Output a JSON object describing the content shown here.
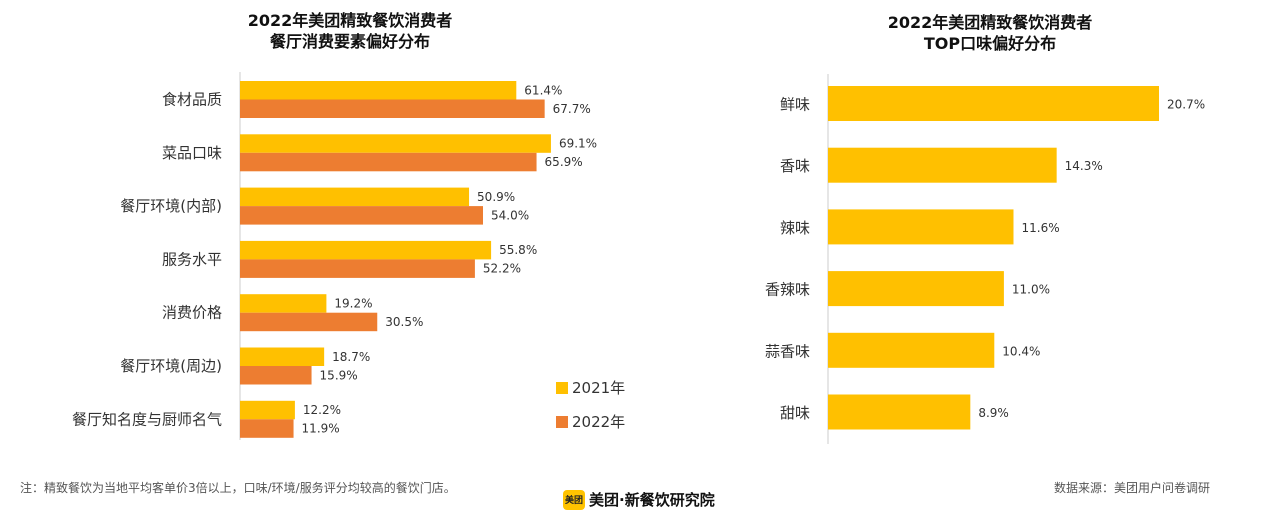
{
  "chart_data": [
    {
      "type": "bar",
      "orientation": "horizontal",
      "title": [
        "2022年美团精致餐饮消费者",
        "餐厅消费要素偏好分布"
      ],
      "categories": [
        "食材品质",
        "菜品口味",
        "餐厅环境(内部)",
        "服务水平",
        "消费价格",
        "餐厅环境(周边)",
        "餐厅知名度与厨师名气"
      ],
      "series": [
        {
          "name": "2021年",
          "color": "#FFC000",
          "values": [
            61.4,
            69.1,
            50.9,
            55.8,
            19.2,
            18.7,
            12.2
          ],
          "labels": [
            "61.4%",
            "69.1%",
            "50.9%",
            "55.8%",
            "19.2%",
            "18.7%",
            "12.2%"
          ]
        },
        {
          "name": "2022年",
          "color": "#ED7D31",
          "values": [
            67.7,
            65.9,
            54.0,
            52.2,
            30.5,
            15.9,
            11.9
          ],
          "labels": [
            "67.7%",
            "65.9%",
            "54.0%",
            "52.2%",
            "30.5%",
            "15.9%",
            "11.9%"
          ]
        }
      ],
      "xlim": [
        0,
        80
      ],
      "grid": false,
      "legend": "bottom-right"
    },
    {
      "type": "bar",
      "orientation": "horizontal",
      "title": [
        "2022年美团精致餐饮消费者",
        "TOP口味偏好分布"
      ],
      "categories": [
        "鲜味",
        "香味",
        "辣味",
        "香辣味",
        "蒜香味",
        "甜味"
      ],
      "series": [
        {
          "color": "#FFC000",
          "values": [
            20.7,
            14.3,
            11.6,
            11.0,
            10.4,
            8.9
          ],
          "labels": [
            "20.7%",
            "14.3%",
            "11.6%",
            "11.0%",
            "10.4%",
            "8.9%"
          ]
        }
      ],
      "xlim": [
        0,
        25
      ],
      "grid": false
    }
  ],
  "footer": {
    "note": "注：精致餐饮为当地平均客单价3倍以上，口味/环境/服务评分均较高的餐饮门店。",
    "source": "数据来源：美团用户问卷调研",
    "brand_logo": "美团",
    "brand_text": "美团·新餐饮研究院"
  }
}
